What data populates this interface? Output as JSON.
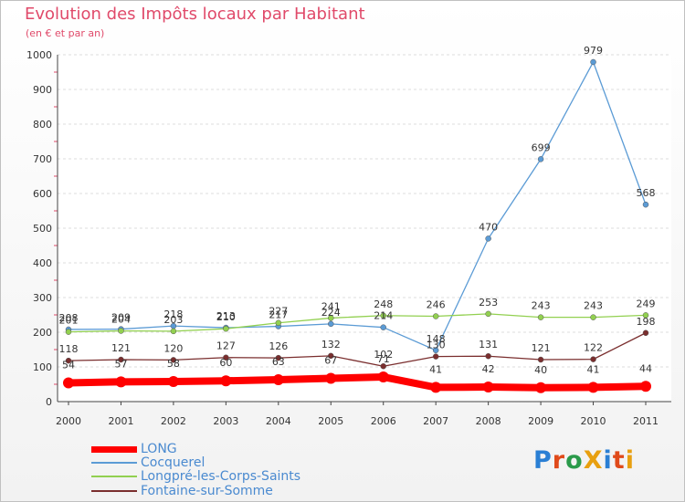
{
  "title": "Evolution des Impôts locaux par Habitant",
  "subtitle": "(en € et par an)",
  "logo": "ProXiti",
  "chart_data": {
    "type": "line",
    "title": "Evolution des Impôts locaux par Habitant",
    "subtitle": "(en € et par an)",
    "xlabel": "",
    "ylabel": "",
    "ylim": [
      0,
      1000
    ],
    "yticks": [
      "0",
      "100",
      "200",
      "300",
      "400",
      "500",
      "600",
      "700",
      "800",
      "900",
      "1000"
    ],
    "categories": [
      "2000",
      "2001",
      "2002",
      "2003",
      "2004",
      "2005",
      "2006",
      "2007",
      "2008",
      "2009",
      "2010",
      "2011"
    ],
    "series": [
      {
        "name": "LONG",
        "color": "#ff0000",
        "values": [
          54,
          57,
          58,
          60,
          63,
          67,
          71,
          41,
          42,
          40,
          41,
          44
        ]
      },
      {
        "name": "Cocquerel",
        "color": "#5b9bd5",
        "values": [
          208,
          209,
          218,
          213,
          217,
          224,
          214,
          148,
          470,
          699,
          979,
          568
        ]
      },
      {
        "name": "Longpré-les-Corps-Saints",
        "color": "#92d050",
        "values": [
          201,
          204,
          203,
          210,
          227,
          241,
          248,
          246,
          253,
          243,
          243,
          249
        ]
      },
      {
        "name": "Fontaine-sur-Somme",
        "color": "#7a2e2e",
        "values": [
          118,
          121,
          120,
          127,
          126,
          132,
          102,
          130,
          131,
          121,
          122,
          198
        ]
      }
    ]
  }
}
